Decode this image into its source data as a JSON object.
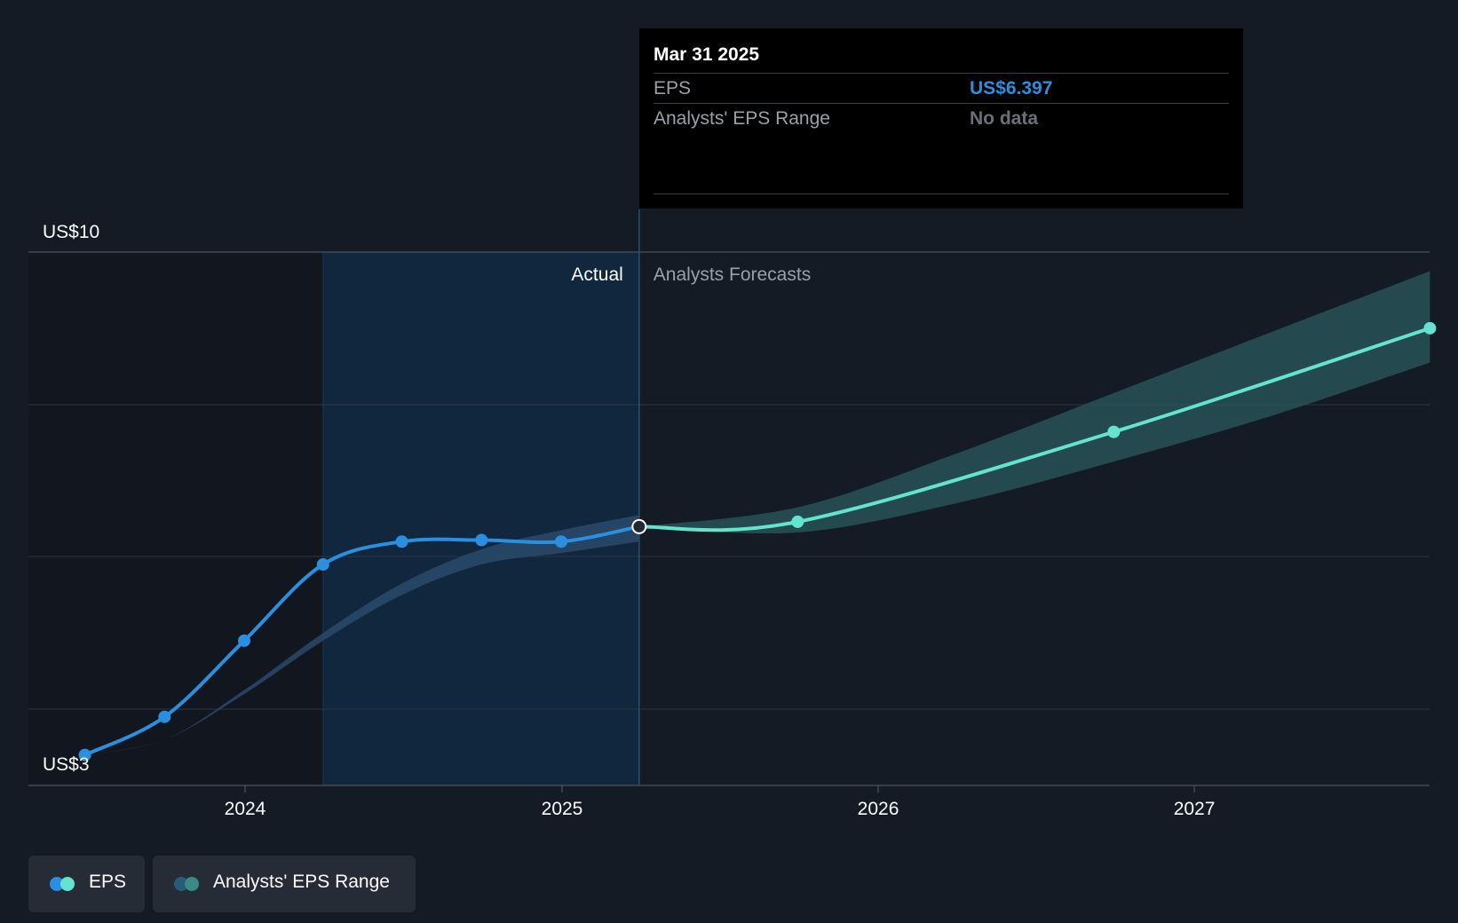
{
  "tooltip": {
    "date": "Mar 31 2025",
    "eps_label": "EPS",
    "eps_value": "US$6.397",
    "range_label": "Analysts' EPS Range",
    "range_value": "No data"
  },
  "legend": {
    "eps": "EPS",
    "range": "Analysts' EPS Range"
  },
  "colors": {
    "background": "#151b24",
    "actual_line": "#2b8fe0",
    "forecast_line": "#63e3d0",
    "forecast_band": "#2a5a5c",
    "actual_band": "#2a4a6a",
    "actual_region": "#112a44",
    "tooltip_value": "#2b8fe0",
    "no_data": "#6b7078"
  },
  "chart_data": {
    "type": "line",
    "y_axis_labels": [
      "US$10",
      "US$3"
    ],
    "ylim": [
      3,
      10
    ],
    "xlim": [
      "2023-06-01",
      "2027-10-01"
    ],
    "x_ticks": [
      "2024",
      "2025",
      "2026",
      "2027"
    ],
    "region_labels": {
      "actual": "Actual",
      "forecast": "Analysts Forecasts"
    },
    "actual_forecast_boundary": "2025-03-31",
    "highlighted_period": [
      "2024-03-31",
      "2025-03-31"
    ],
    "series": [
      {
        "name": "EPS",
        "segment": "actual",
        "x": [
          "2023-06-30",
          "2023-09-30",
          "2023-12-31",
          "2024-03-31",
          "2024-06-30",
          "2024-09-30",
          "2024-12-31",
          "2025-03-31"
        ],
        "y": [
          3.4,
          3.9,
          4.9,
          5.9,
          6.2,
          6.22,
          6.2,
          6.397
        ]
      },
      {
        "name": "EPS",
        "segment": "forecast",
        "x": [
          "2025-03-31",
          "2025-09-30",
          "2026-09-30",
          "2027-09-30"
        ],
        "y": [
          6.397,
          6.46,
          7.64,
          9.0
        ]
      },
      {
        "name": "Analysts' EPS Range",
        "segment": "actual",
        "x": [
          "2023-06-30",
          "2023-09-30",
          "2023-12-31",
          "2024-03-31",
          "2024-06-30",
          "2024-09-30",
          "2024-12-31",
          "2025-03-31"
        ],
        "low": [
          3.4,
          3.6,
          4.2,
          4.9,
          5.5,
          5.9,
          6.05,
          6.2
        ],
        "high": [
          3.4,
          3.6,
          4.25,
          5.0,
          5.65,
          6.1,
          6.35,
          6.55
        ]
      },
      {
        "name": "Analysts' EPS Range",
        "segment": "forecast",
        "x": [
          "2025-03-31",
          "2025-09-30",
          "2026-03-31",
          "2026-09-30",
          "2027-03-31",
          "2027-09-30"
        ],
        "low": [
          6.397,
          6.32,
          6.7,
          7.25,
          7.85,
          8.55
        ],
        "high": [
          6.397,
          6.65,
          7.35,
          8.15,
          8.95,
          9.75
        ]
      }
    ]
  }
}
